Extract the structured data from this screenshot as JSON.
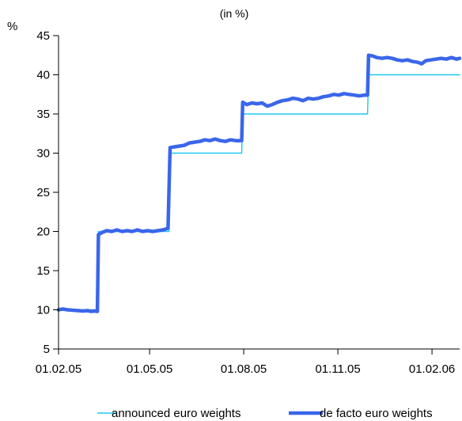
{
  "chart_data": {
    "type": "line",
    "title": "",
    "subtitle": "(in %)",
    "ylabel": "%",
    "xlabel": "",
    "ylim": [
      5,
      45
    ],
    "y_ticks": [
      "5",
      "10",
      "15",
      "20",
      "25",
      "30",
      "35",
      "40",
      "45"
    ],
    "xlim": [
      "2005-02-01",
      "2006-02-28"
    ],
    "x_ticks": [
      {
        "date": "2005-02-01",
        "label": "01.02.05"
      },
      {
        "date": "2005-05-01",
        "label": "01.05.05"
      },
      {
        "date": "2005-08-01",
        "label": "01.08.05"
      },
      {
        "date": "2005-11-01",
        "label": "01.11.05"
      },
      {
        "date": "2006-02-01",
        "label": "01.02.06"
      }
    ],
    "grid": false,
    "legend_position": "bottom",
    "series": [
      {
        "name": "announced euro weights",
        "color": "#1ec8ec",
        "style": "thin",
        "points": [
          [
            "2005-02-01",
            10.0
          ],
          [
            "2005-03-11",
            10.0
          ],
          [
            "2005-03-12",
            20.0
          ],
          [
            "2005-05-20",
            20.0
          ],
          [
            "2005-05-21",
            30.0
          ],
          [
            "2005-07-30",
            30.0
          ],
          [
            "2005-07-31",
            35.0
          ],
          [
            "2005-11-30",
            35.0
          ],
          [
            "2005-12-01",
            40.0
          ],
          [
            "2006-02-28",
            40.0
          ]
        ]
      },
      {
        "name": "de facto euro weights",
        "color": "#3a66ea",
        "style": "thick",
        "points": [
          [
            "2005-02-01",
            10.0
          ],
          [
            "2005-02-05",
            10.1
          ],
          [
            "2005-02-10",
            10.0
          ],
          [
            "2005-02-15",
            9.95
          ],
          [
            "2005-02-20",
            9.9
          ],
          [
            "2005-02-25",
            9.85
          ],
          [
            "2005-03-01",
            9.9
          ],
          [
            "2005-03-05",
            9.8
          ],
          [
            "2005-03-08",
            9.85
          ],
          [
            "2005-03-11",
            9.8
          ],
          [
            "2005-03-12",
            19.6
          ],
          [
            "2005-03-16",
            19.9
          ],
          [
            "2005-03-20",
            20.1
          ],
          [
            "2005-03-25",
            20.0
          ],
          [
            "2005-03-30",
            20.2
          ],
          [
            "2005-04-04",
            20.0
          ],
          [
            "2005-04-09",
            20.1
          ],
          [
            "2005-04-14",
            20.0
          ],
          [
            "2005-04-19",
            20.2
          ],
          [
            "2005-04-24",
            20.0
          ],
          [
            "2005-04-29",
            20.1
          ],
          [
            "2005-05-04",
            20.0
          ],
          [
            "2005-05-09",
            20.1
          ],
          [
            "2005-05-14",
            20.2
          ],
          [
            "2005-05-19",
            20.4
          ],
          [
            "2005-05-21",
            30.7
          ],
          [
            "2005-05-25",
            30.8
          ],
          [
            "2005-05-30",
            30.9
          ],
          [
            "2005-06-04",
            31.0
          ],
          [
            "2005-06-09",
            31.3
          ],
          [
            "2005-06-14",
            31.4
          ],
          [
            "2005-06-19",
            31.5
          ],
          [
            "2005-06-24",
            31.7
          ],
          [
            "2005-06-29",
            31.6
          ],
          [
            "2005-07-04",
            31.8
          ],
          [
            "2005-07-09",
            31.6
          ],
          [
            "2005-07-14",
            31.5
          ],
          [
            "2005-07-19",
            31.7
          ],
          [
            "2005-07-24",
            31.6
          ],
          [
            "2005-07-30",
            31.6
          ],
          [
            "2005-07-31",
            36.5
          ],
          [
            "2005-08-04",
            36.2
          ],
          [
            "2005-08-09",
            36.4
          ],
          [
            "2005-08-14",
            36.3
          ],
          [
            "2005-08-19",
            36.4
          ],
          [
            "2005-08-24",
            36.0
          ],
          [
            "2005-08-29",
            36.2
          ],
          [
            "2005-09-03",
            36.5
          ],
          [
            "2005-09-08",
            36.7
          ],
          [
            "2005-09-13",
            36.8
          ],
          [
            "2005-09-18",
            37.0
          ],
          [
            "2005-09-23",
            36.9
          ],
          [
            "2005-09-28",
            36.7
          ],
          [
            "2005-10-03",
            37.0
          ],
          [
            "2005-10-08",
            36.9
          ],
          [
            "2005-10-13",
            37.0
          ],
          [
            "2005-10-18",
            37.2
          ],
          [
            "2005-10-23",
            37.3
          ],
          [
            "2005-10-28",
            37.5
          ],
          [
            "2005-11-02",
            37.4
          ],
          [
            "2005-11-07",
            37.6
          ],
          [
            "2005-11-12",
            37.5
          ],
          [
            "2005-11-17",
            37.4
          ],
          [
            "2005-11-22",
            37.3
          ],
          [
            "2005-11-27",
            37.4
          ],
          [
            "2005-11-30",
            37.4
          ],
          [
            "2005-12-01",
            42.5
          ],
          [
            "2005-12-05",
            42.4
          ],
          [
            "2005-12-09",
            42.2
          ],
          [
            "2005-12-14",
            42.1
          ],
          [
            "2005-12-19",
            42.2
          ],
          [
            "2005-12-24",
            42.1
          ],
          [
            "2005-12-29",
            41.9
          ],
          [
            "2006-01-03",
            41.8
          ],
          [
            "2006-01-08",
            41.9
          ],
          [
            "2006-01-13",
            41.7
          ],
          [
            "2006-01-18",
            41.6
          ],
          [
            "2006-01-22",
            41.4
          ],
          [
            "2006-01-26",
            41.8
          ],
          [
            "2006-01-31",
            41.9
          ],
          [
            "2006-02-05",
            42.0
          ],
          [
            "2006-02-10",
            42.1
          ],
          [
            "2006-02-15",
            42.0
          ],
          [
            "2006-02-20",
            42.2
          ],
          [
            "2006-02-25",
            42.0
          ],
          [
            "2006-02-28",
            42.1
          ]
        ]
      }
    ]
  }
}
